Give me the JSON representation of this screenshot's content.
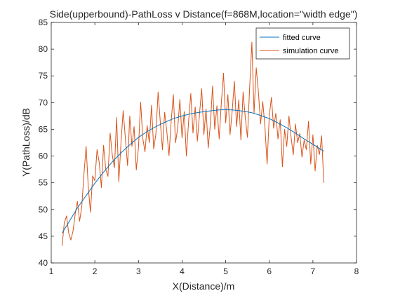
{
  "chart_data": {
    "type": "line",
    "title": "Side(upperbound)-PathLoss v Distance(f=868M,location=\"width edge\")",
    "xlabel": "X(Distance)/m",
    "ylabel": "Y(PathLoss)/dB",
    "xlim": [
      1,
      8
    ],
    "ylim": [
      40,
      85
    ],
    "xticks": [
      1,
      2,
      3,
      4,
      5,
      6,
      7,
      8
    ],
    "yticks": [
      40,
      45,
      50,
      55,
      60,
      65,
      70,
      75,
      80,
      85
    ],
    "xtick_labels": [
      "1",
      "2",
      "3",
      "4",
      "5",
      "6",
      "7",
      "8"
    ],
    "ytick_labels": [
      "40",
      "45",
      "50",
      "55",
      "60",
      "65",
      "70",
      "75",
      "80",
      "85"
    ],
    "grid": false,
    "legend_position": "top-right",
    "series": [
      {
        "name": "fitted curve",
        "color": "#0072BD",
        "x": [
          1.25,
          1.4,
          1.6,
          1.8,
          2.0,
          2.2,
          2.4,
          2.6,
          2.8,
          3.0,
          3.2,
          3.4,
          3.6,
          3.8,
          4.0,
          4.2,
          4.4,
          4.6,
          4.8,
          5.0,
          5.2,
          5.4,
          5.6,
          5.8,
          6.0,
          6.2,
          6.4,
          6.6,
          6.8,
          7.0,
          7.25
        ],
        "y": [
          45.6,
          47.6,
          50.3,
          52.6,
          54.9,
          57.0,
          58.9,
          60.6,
          62.1,
          63.5,
          64.6,
          65.5,
          66.3,
          67.0,
          67.5,
          67.9,
          68.2,
          68.4,
          68.6,
          68.7,
          68.6,
          68.4,
          68.1,
          67.6,
          67.0,
          66.2,
          65.3,
          64.3,
          63.2,
          62.2,
          60.9
        ]
      },
      {
        "name": "simulation curve",
        "color": "#D95319",
        "x": [
          1.25,
          1.3,
          1.35,
          1.4,
          1.45,
          1.5,
          1.55,
          1.6,
          1.65,
          1.7,
          1.75,
          1.8,
          1.85,
          1.9,
          1.95,
          2.0,
          2.05,
          2.1,
          2.15,
          2.2,
          2.25,
          2.3,
          2.35,
          2.4,
          2.45,
          2.5,
          2.55,
          2.6,
          2.65,
          2.7,
          2.75,
          2.8,
          2.85,
          2.9,
          2.95,
          3.0,
          3.05,
          3.1,
          3.15,
          3.2,
          3.25,
          3.3,
          3.35,
          3.4,
          3.45,
          3.5,
          3.55,
          3.6,
          3.65,
          3.7,
          3.75,
          3.8,
          3.85,
          3.9,
          3.95,
          4.0,
          4.05,
          4.1,
          4.15,
          4.2,
          4.25,
          4.3,
          4.35,
          4.4,
          4.45,
          4.5,
          4.55,
          4.6,
          4.65,
          4.7,
          4.75,
          4.8,
          4.85,
          4.9,
          4.95,
          5.0,
          5.05,
          5.1,
          5.15,
          5.2,
          5.25,
          5.3,
          5.35,
          5.4,
          5.45,
          5.5,
          5.55,
          5.6,
          5.65,
          5.7,
          5.75,
          5.8,
          5.85,
          5.9,
          5.95,
          6.0,
          6.05,
          6.1,
          6.15,
          6.2,
          6.25,
          6.3,
          6.35,
          6.4,
          6.45,
          6.5,
          6.55,
          6.6,
          6.65,
          6.7,
          6.75,
          6.8,
          6.85,
          6.9,
          6.95,
          7.0,
          7.05,
          7.1,
          7.15,
          7.2,
          7.25
        ],
        "y": [
          43.2,
          47.5,
          48.8,
          45.6,
          44.3,
          46.0,
          49.2,
          51.5,
          47.8,
          50.5,
          56.6,
          61.8,
          54.2,
          49.5,
          56.3,
          55.4,
          61.2,
          58.8,
          54.1,
          62.0,
          57.5,
          56.2,
          64.3,
          60.2,
          57.8,
          67.2,
          55.2,
          62.5,
          68.5,
          63.4,
          58.2,
          67.5,
          61.8,
          65.5,
          57.4,
          61.6,
          70.1,
          63.3,
          60.8,
          65.7,
          62.5,
          69.5,
          61.3,
          64.1,
          72.0,
          66.4,
          61.2,
          68.2,
          64.6,
          60.1,
          66.5,
          71.5,
          62.5,
          65.2,
          70.6,
          63.4,
          68.3,
          60.0,
          66.6,
          71.7,
          64.3,
          69.2,
          62.8,
          67.9,
          72.6,
          64.0,
          68.8,
          61.5,
          66.0,
          73.1,
          65.0,
          69.4,
          63.2,
          70.0,
          75.5,
          66.2,
          71.5,
          64.0,
          68.5,
          74.0,
          65.5,
          70.5,
          63.0,
          72.0,
          67.2,
          63.5,
          73.0,
          81.3,
          68.0,
          76.5,
          72.0,
          66.0,
          70.2,
          65.5,
          58.5,
          67.5,
          71.0,
          65.2,
          68.0,
          63.2,
          66.8,
          58.0,
          65.0,
          61.8,
          67.5,
          63.5,
          60.2,
          66.0,
          62.5,
          64.2,
          59.8,
          63.0,
          61.2,
          66.5,
          58.5,
          64.0,
          57.2,
          62.0,
          60.3,
          63.8,
          55.0
        ]
      }
    ]
  }
}
